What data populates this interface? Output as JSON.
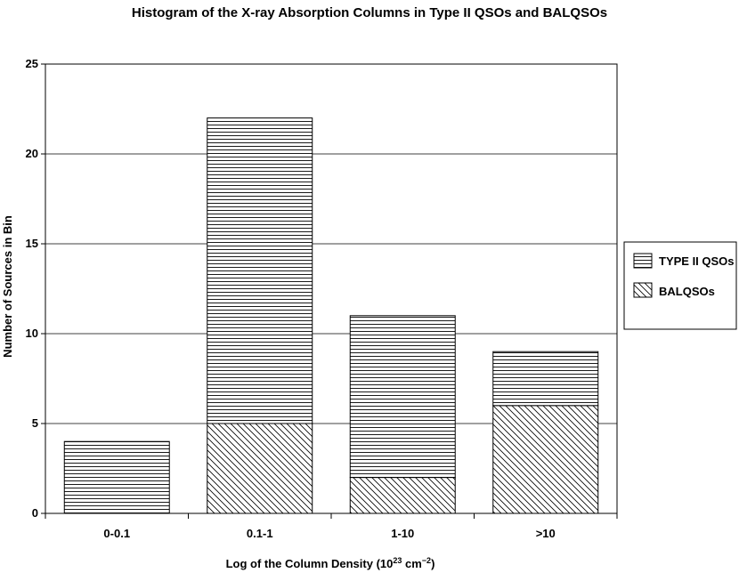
{
  "chart_data": {
    "type": "bar",
    "stacked": true,
    "title": "Histogram of the X-ray Absorption Columns in Type II QSOs and BALQSOs",
    "xlabel": "Log of the Column Density (10",
    "xlabel_sup": "23",
    "xlabel_unit": " cm",
    "xlabel_unit_sup": "−2",
    "xlabel_close": ")",
    "ylabel": "Number of Sources in Bin",
    "ylim": [
      0,
      25
    ],
    "yticks": [
      "0",
      "5",
      "10",
      "15",
      "20",
      "25"
    ],
    "grid": true,
    "legend_position": "right",
    "categories": [
      "0-0.1",
      "0.1-1",
      "1-10",
      ">10"
    ],
    "series": [
      {
        "name": "BALQSOs",
        "pattern": "diagonal-hatch",
        "values": [
          0,
          5,
          2,
          6
        ]
      },
      {
        "name": "TYPE II QSOs",
        "pattern": "horizontal-lines",
        "values": [
          4,
          17,
          9,
          3
        ]
      }
    ],
    "legend": [
      "TYPE II QSOs",
      "BALQSOs"
    ]
  },
  "colors": {
    "stroke": "#000000",
    "background": "#ffffff",
    "grid": "#000000"
  }
}
